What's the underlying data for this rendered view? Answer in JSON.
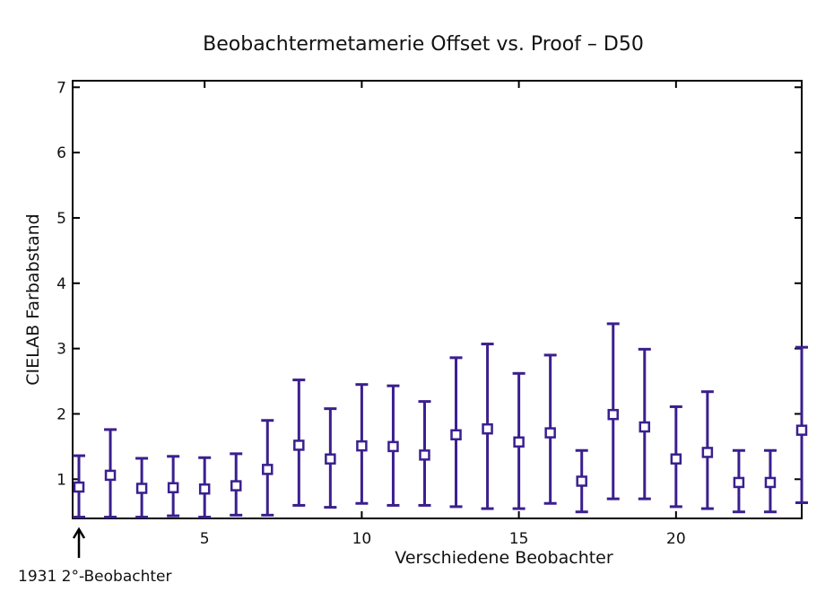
{
  "chart_data": {
    "type": "scatter",
    "title": "Beobachtermetamerie Offset vs. Proof – D50",
    "xlabel": "Verschiedene Beobachter",
    "ylabel": "CIELAB Farbabstand",
    "xlim": [
      0.8,
      24
    ],
    "ylim": [
      0.4,
      7.1
    ],
    "xticks": [
      5,
      10,
      15,
      20
    ],
    "yticks": [
      1,
      2,
      3,
      4,
      5,
      6,
      7
    ],
    "grid": false,
    "marker": "square",
    "color": "#3b1f8f",
    "series": [
      {
        "x": [
          1,
          2,
          3,
          4,
          5,
          6,
          7,
          8,
          9,
          10,
          11,
          12,
          13,
          14,
          15,
          16,
          17,
          18,
          19,
          20,
          21,
          22,
          23,
          24
        ],
        "y": [
          0.88,
          1.06,
          0.86,
          0.87,
          0.85,
          0.9,
          1.15,
          1.52,
          1.31,
          1.51,
          1.5,
          1.37,
          1.68,
          1.77,
          1.57,
          1.71,
          0.97,
          1.99,
          1.8,
          1.31,
          1.41,
          0.95,
          0.95,
          1.75
        ],
        "err_low": [
          0.42,
          0.42,
          0.42,
          0.44,
          0.42,
          0.45,
          0.45,
          0.6,
          0.57,
          0.63,
          0.6,
          0.6,
          0.58,
          0.55,
          0.55,
          0.63,
          0.5,
          0.7,
          0.7,
          0.58,
          0.55,
          0.5,
          0.5,
          0.64
        ],
        "err_high": [
          1.36,
          1.76,
          1.32,
          1.35,
          1.33,
          1.39,
          1.9,
          2.52,
          2.08,
          2.45,
          2.43,
          2.19,
          2.86,
          3.07,
          2.62,
          2.9,
          1.44,
          3.38,
          2.99,
          2.11,
          2.34,
          1.44,
          1.44,
          3.02
        ]
      }
    ],
    "annotation": {
      "text": "1931 2°-Beobachter",
      "x": 1
    }
  }
}
